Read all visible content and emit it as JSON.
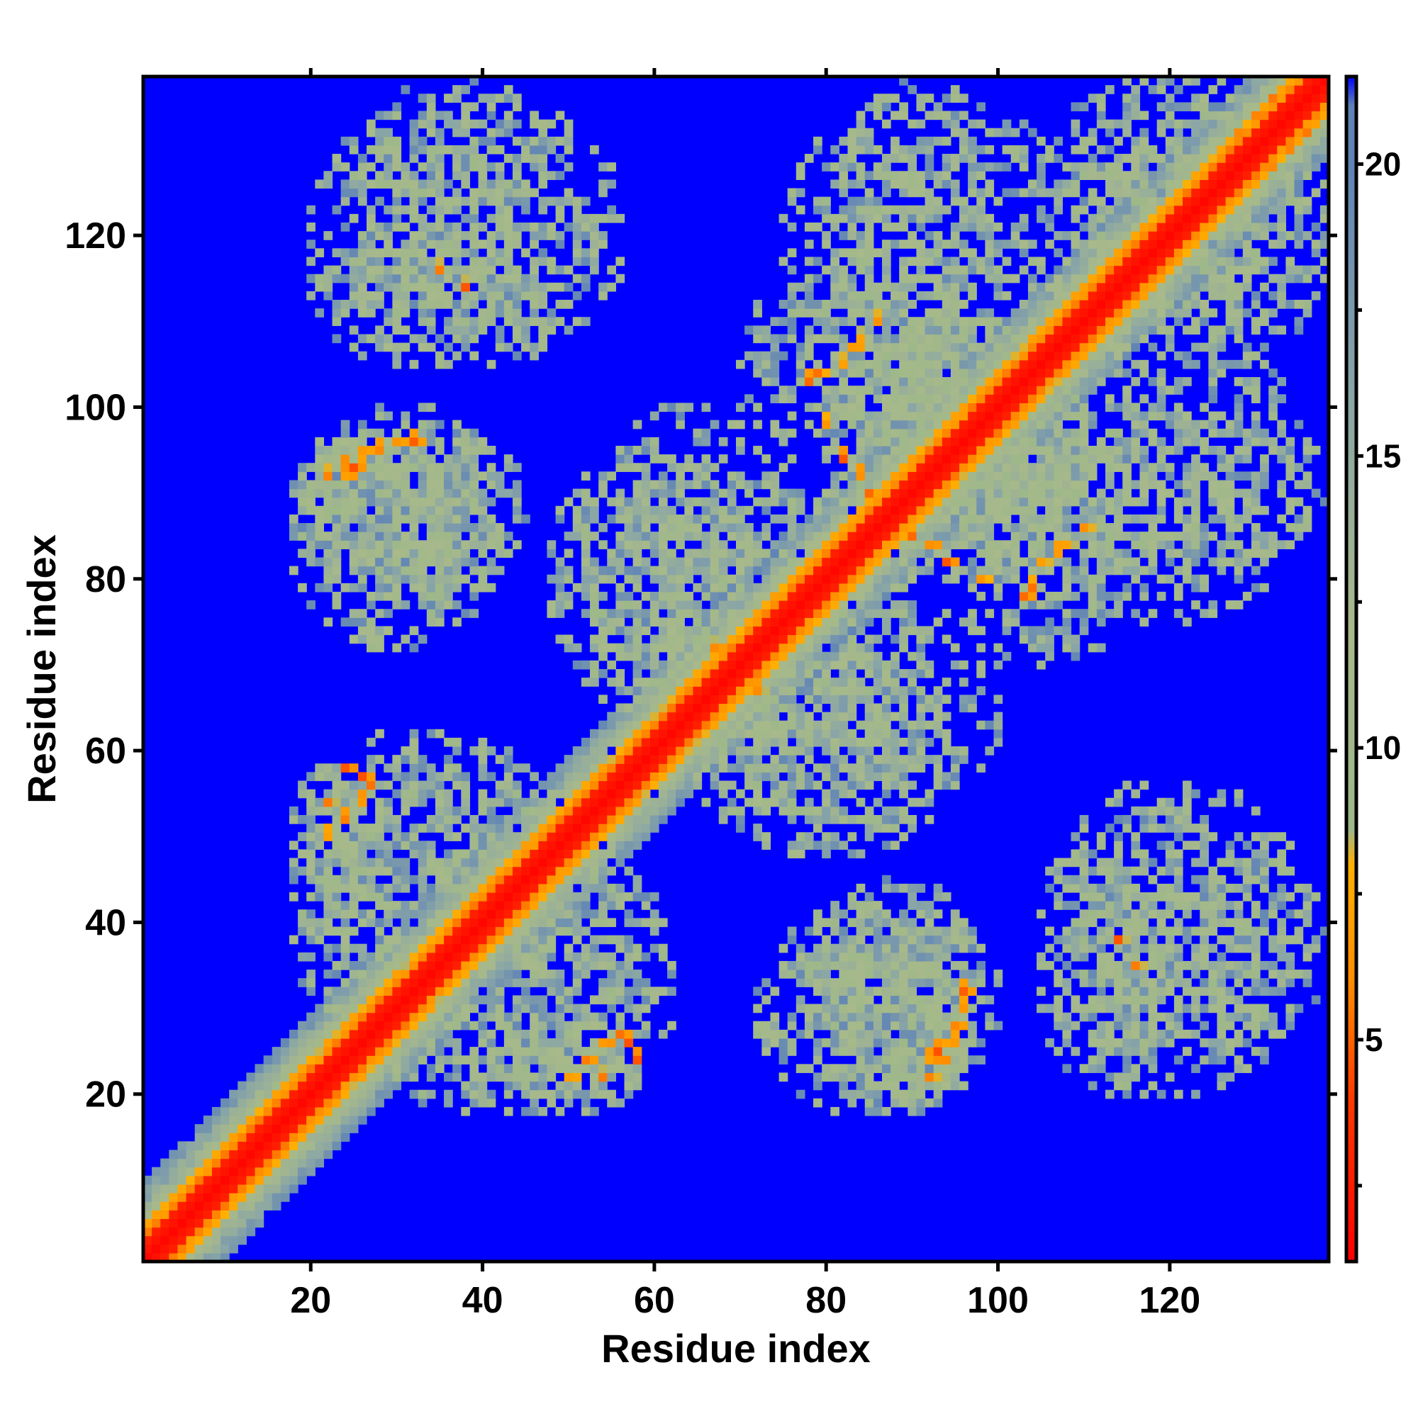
{
  "chart_data": {
    "type": "heatmap",
    "title": "",
    "xlabel": "Residue index",
    "ylabel": "Residue index",
    "xlim": [
      1,
      138
    ],
    "ylim": [
      1,
      138
    ],
    "grid": false,
    "legend": "colorbar-right",
    "x_ticks": [
      20,
      40,
      60,
      80,
      100,
      120
    ],
    "y_ticks": [
      20,
      40,
      60,
      80,
      100,
      120
    ],
    "colorbar": {
      "range": [
        1.2,
        21.5
      ],
      "ticks": [
        5,
        10,
        15,
        20
      ],
      "colors": [
        {
          "value": 1.2,
          "color": "#ff0000"
        },
        {
          "value": 4.0,
          "color": "#ff3a00"
        },
        {
          "value": 6.0,
          "color": "#ff8c00"
        },
        {
          "value": 8.0,
          "color": "#ffb000"
        },
        {
          "value": 8.6,
          "color": "#9db88a"
        },
        {
          "value": 12.0,
          "color": "#a8b98a"
        },
        {
          "value": 16.0,
          "color": "#8aa6a6"
        },
        {
          "value": 20.0,
          "color": "#5f83b6"
        },
        {
          "value": 21.5,
          "color": "#0000ff"
        }
      ]
    },
    "matrix_size": 138,
    "diagonal_band": {
      "core_width": 2,
      "orange_width": 4,
      "halo_width": 9
    },
    "contact_regions": [
      {
        "x": [
          18,
          45
        ],
        "y": [
          78,
          98
        ],
        "density": 0.75
      },
      {
        "x": [
          18,
          48
        ],
        "y": [
          40,
          62
        ],
        "density": 0.75
      },
      {
        "x": [
          28,
          58
        ],
        "y": [
          18,
          30
        ],
        "density": 0.75
      },
      {
        "x": [
          20,
          56
        ],
        "y": [
          105,
          136
        ],
        "density": 0.55
      },
      {
        "x": [
          48,
          72
        ],
        "y": [
          65,
          95
        ],
        "density": 0.65
      },
      {
        "x": [
          60,
          100
        ],
        "y": [
          52,
          80
        ],
        "density": 0.6
      },
      {
        "x": [
          72,
          100
        ],
        "y": [
          18,
          42
        ],
        "density": 0.7
      },
      {
        "x": [
          80,
          110
        ],
        "y": [
          80,
          110
        ],
        "density": 0.6
      },
      {
        "x": [
          95,
          118
        ],
        "y": [
          70,
          100
        ],
        "density": 0.6
      },
      {
        "x": [
          105,
          120
        ],
        "y": [
          20,
          50
        ],
        "density": 0.6
      },
      {
        "x": [
          115,
          138
        ],
        "y": [
          25,
          50
        ],
        "density": 0.45
      },
      {
        "x": [
          75,
          112
        ],
        "y": [
          100,
          136
        ],
        "density": 0.5
      },
      {
        "x": [
          112,
          138
        ],
        "y": [
          105,
          136
        ],
        "density": 0.55
      },
      {
        "x": [
          112,
          138
        ],
        "y": [
          80,
          100
        ],
        "density": 0.35
      }
    ],
    "close_contacts": [
      [
        24,
        92
      ],
      [
        25,
        93
      ],
      [
        26,
        95
      ],
      [
        30,
        96
      ],
      [
        32,
        96
      ],
      [
        24,
        58
      ],
      [
        22,
        54
      ],
      [
        26,
        57
      ],
      [
        50,
        22
      ],
      [
        52,
        24
      ],
      [
        54,
        26
      ],
      [
        56,
        27
      ],
      [
        92,
        22
      ],
      [
        93,
        24
      ],
      [
        94,
        26
      ],
      [
        95,
        28
      ],
      [
        96,
        32
      ],
      [
        85,
        90
      ],
      [
        86,
        88
      ],
      [
        84,
        86
      ],
      [
        70,
        68
      ],
      [
        68,
        72
      ],
      [
        66,
        70
      ],
      [
        58,
        60
      ],
      [
        60,
        62
      ],
      [
        62,
        60
      ],
      [
        72,
        67
      ],
      [
        110,
        86
      ],
      [
        108,
        84
      ],
      [
        105,
        82
      ],
      [
        103,
        78
      ],
      [
        92,
        84
      ],
      [
        94,
        82
      ],
      [
        98,
        80
      ],
      [
        79,
        104
      ],
      [
        83,
        107
      ],
      [
        114,
        38
      ],
      [
        116,
        35
      ],
      [
        130,
        134
      ],
      [
        132,
        136
      ],
      [
        128,
        132
      ]
    ]
  }
}
